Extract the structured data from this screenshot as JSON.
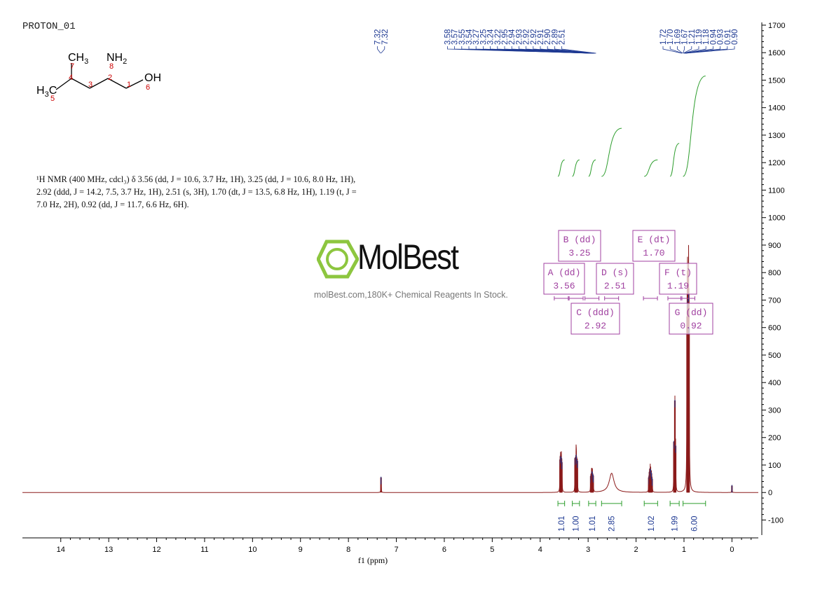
{
  "experiment_name": "PROTON_01",
  "structure": {
    "groups": [
      "CH3",
      "NH2",
      "H3C",
      "OH"
    ],
    "atom_numbers": [
      "7",
      "4",
      "3",
      "8",
      "2",
      "1",
      "6",
      "5"
    ]
  },
  "nmr_description": "¹H NMR (400 MHz, cdcl₃) δ 3.56 (dd, J = 10.6, 3.7 Hz, 1H), 3.25 (dd, J = 10.6, 8.0 Hz, 1H),\n2.92 (ddd, J = 14.2, 7.5, 3.7 Hz, 1H), 2.51 (s, 3H), 1.70 (dt, J = 13.5, 6.8 Hz, 1H), 1.19 (t, J =\n7.0 Hz, 2H), 0.92 (dd, J = 11.7, 6.6 Hz, 6H).",
  "watermark": {
    "brand": "MolBest",
    "tagline": "molBest.com,180K+ Chemical Reagents In Stock."
  },
  "colors": {
    "spectrum": "#8b1a1a",
    "peak_labels": "#1f3a93",
    "integral": "#2e9e2e",
    "multiplet_box": "#a040a0",
    "logo": "#8dc63f"
  },
  "chart_data": {
    "type": "line",
    "xlabel": "f1 (ppm)",
    "xlim": [
      14.8,
      -0.55
    ],
    "ylim": [
      -165,
      1710
    ],
    "x_ticks": [
      14,
      13,
      12,
      11,
      10,
      9,
      8,
      7,
      6,
      5,
      4,
      3,
      2,
      1,
      0
    ],
    "y_ticks": [
      -100,
      0,
      100,
      200,
      300,
      400,
      500,
      600,
      700,
      800,
      900,
      1000,
      1100,
      1200,
      1300,
      1400,
      1500,
      1600,
      1700
    ],
    "peaks": [
      {
        "ppm": 7.32,
        "height": 55,
        "width": 0.004
      },
      {
        "ppm": 3.585,
        "height": 120,
        "width": 0.004
      },
      {
        "ppm": 3.575,
        "height": 130,
        "width": 0.004
      },
      {
        "ppm": 3.558,
        "height": 125,
        "width": 0.004
      },
      {
        "ppm": 3.548,
        "height": 110,
        "width": 0.004
      },
      {
        "ppm": 3.272,
        "height": 125,
        "width": 0.004
      },
      {
        "ppm": 3.252,
        "height": 135,
        "width": 0.004
      },
      {
        "ppm": 3.245,
        "height": 130,
        "width": 0.004
      },
      {
        "ppm": 3.225,
        "height": 115,
        "width": 0.004
      },
      {
        "ppm": 2.945,
        "height": 60,
        "width": 0.004
      },
      {
        "ppm": 2.93,
        "height": 70,
        "width": 0.004
      },
      {
        "ppm": 2.92,
        "height": 75,
        "width": 0.004
      },
      {
        "ppm": 2.91,
        "height": 70,
        "width": 0.004
      },
      {
        "ppm": 2.895,
        "height": 62,
        "width": 0.004
      },
      {
        "ppm": 2.51,
        "height": 70,
        "width": 0.06
      },
      {
        "ppm": 1.735,
        "height": 55,
        "width": 0.004
      },
      {
        "ppm": 1.72,
        "height": 75,
        "width": 0.004
      },
      {
        "ppm": 1.705,
        "height": 85,
        "width": 0.004
      },
      {
        "ppm": 1.695,
        "height": 80,
        "width": 0.004
      },
      {
        "ppm": 1.68,
        "height": 70,
        "width": 0.004
      },
      {
        "ppm": 1.665,
        "height": 50,
        "width": 0.004
      },
      {
        "ppm": 1.21,
        "height": 185,
        "width": 0.004
      },
      {
        "ppm": 1.19,
        "height": 335,
        "width": 0.004
      },
      {
        "ppm": 1.175,
        "height": 170,
        "width": 0.004
      },
      {
        "ppm": 0.935,
        "height": 640,
        "width": 0.005
      },
      {
        "ppm": 0.925,
        "height": 700,
        "width": 0.005
      },
      {
        "ppm": 0.905,
        "height": 720,
        "width": 0.005
      },
      {
        "ppm": 0.895,
        "height": 600,
        "width": 0.005
      },
      {
        "ppm": 0.0,
        "height": 25,
        "width": 0.004
      }
    ],
    "peak_labels": [
      {
        "group_ppm": 7.32,
        "labels": [
          "7.32",
          "7.32"
        ]
      },
      {
        "group_ppm": 2.9,
        "labels": [
          "3.58",
          "3.57",
          "3.55",
          "3.54",
          "3.27",
          "3.25",
          "3.24",
          "3.22",
          "2.95",
          "2.94",
          "2.93",
          "2.92",
          "2.92",
          "2.91",
          "2.90",
          "2.89",
          "2.51"
        ]
      },
      {
        "group_ppm": 1.0,
        "labels": [
          "1.72",
          "1.70",
          "1.69",
          "1.67",
          "1.21",
          "1.19",
          "1.18",
          "0.94",
          "0.93",
          "0.91",
          "0.90"
        ]
      }
    ],
    "multiplets": [
      {
        "letter": "A",
        "type": "dd",
        "shift": "3.56"
      },
      {
        "letter": "B",
        "type": "dd",
        "shift": "3.25"
      },
      {
        "letter": "C",
        "type": "ddd",
        "shift": "2.92"
      },
      {
        "letter": "D",
        "type": "s",
        "shift": "2.51"
      },
      {
        "letter": "E",
        "type": "dt",
        "shift": "1.70"
      },
      {
        "letter": "F",
        "type": "t",
        "shift": "1.19"
      },
      {
        "letter": "G",
        "type": "dd",
        "shift": "0.92"
      }
    ],
    "integrals": [
      {
        "from": 3.63,
        "to": 3.49,
        "value": "1.01",
        "y_base": 1150,
        "height": 60
      },
      {
        "from": 3.33,
        "to": 3.18,
        "value": "1.00",
        "y_base": 1150,
        "height": 60
      },
      {
        "from": 2.99,
        "to": 2.84,
        "value": "1.01",
        "y_base": 1150,
        "height": 60
      },
      {
        "from": 2.72,
        "to": 2.3,
        "value": "2.85",
        "y_base": 1150,
        "height": 175
      },
      {
        "from": 1.83,
        "to": 1.55,
        "value": "1.02",
        "y_base": 1150,
        "height": 60
      },
      {
        "from": 1.29,
        "to": 1.1,
        "value": "1.99",
        "y_base": 1150,
        "height": 120
      },
      {
        "from": 1.02,
        "to": 0.55,
        "value": "6.00",
        "y_base": 1150,
        "height": 365
      }
    ]
  }
}
